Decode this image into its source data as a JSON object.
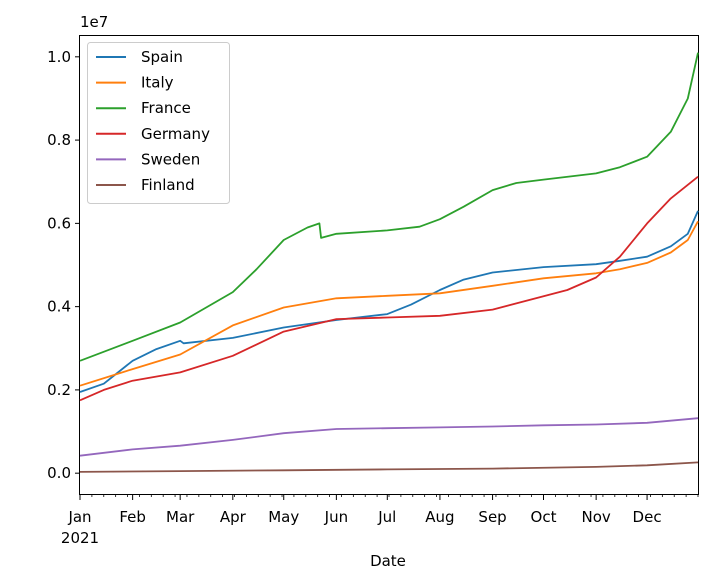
{
  "chart_data": {
    "type": "line",
    "xlabel": "Date",
    "ylabel": "",
    "offset_label": "1e7",
    "xlim": [
      "2021-01-01",
      "2021-12-31"
    ],
    "ylim": [
      -0.05,
      1.05
    ],
    "y_unit_multiplier": 10000000,
    "yticks": [
      0.0,
      0.2,
      0.4,
      0.6,
      0.8,
      1.0
    ],
    "ytick_labels": [
      "0.0",
      "0.2",
      "0.4",
      "0.6",
      "0.8",
      "1.0"
    ],
    "xticks": [
      {
        "date": "2021-01-01",
        "label": "Jan",
        "sublabel": "2021"
      },
      {
        "date": "2021-02-01",
        "label": "Feb"
      },
      {
        "date": "2021-03-01",
        "label": "Mar"
      },
      {
        "date": "2021-04-01",
        "label": "Apr"
      },
      {
        "date": "2021-05-01",
        "label": "May"
      },
      {
        "date": "2021-06-01",
        "label": "Jun"
      },
      {
        "date": "2021-07-01",
        "label": "Jul"
      },
      {
        "date": "2021-08-01",
        "label": "Aug"
      },
      {
        "date": "2021-09-01",
        "label": "Sep"
      },
      {
        "date": "2021-10-01",
        "label": "Oct"
      },
      {
        "date": "2021-11-01",
        "label": "Nov"
      },
      {
        "date": "2021-12-01",
        "label": "Dec"
      }
    ],
    "grid": false,
    "legend_position": "upper-left",
    "series": [
      {
        "name": "Spain",
        "color": "#1f77b4",
        "points": [
          [
            "2021-01-01",
            0.195
          ],
          [
            "2021-01-15",
            0.215
          ],
          [
            "2021-02-01",
            0.27
          ],
          [
            "2021-02-15",
            0.298
          ],
          [
            "2021-03-01",
            0.318
          ],
          [
            "2021-03-03",
            0.312
          ],
          [
            "2021-04-01",
            0.325
          ],
          [
            "2021-05-01",
            0.35
          ],
          [
            "2021-06-01",
            0.368
          ],
          [
            "2021-07-01",
            0.382
          ],
          [
            "2021-07-15",
            0.405
          ],
          [
            "2021-08-01",
            0.44
          ],
          [
            "2021-08-15",
            0.465
          ],
          [
            "2021-09-01",
            0.482
          ],
          [
            "2021-10-01",
            0.495
          ],
          [
            "2021-11-01",
            0.502
          ],
          [
            "2021-11-15",
            0.51
          ],
          [
            "2021-12-01",
            0.52
          ],
          [
            "2021-12-15",
            0.545
          ],
          [
            "2021-12-25",
            0.575
          ],
          [
            "2021-12-31",
            0.63
          ]
        ]
      },
      {
        "name": "Italy",
        "color": "#ff7f0e",
        "points": [
          [
            "2021-01-01",
            0.21
          ],
          [
            "2021-02-01",
            0.25
          ],
          [
            "2021-03-01",
            0.285
          ],
          [
            "2021-04-01",
            0.355
          ],
          [
            "2021-05-01",
            0.398
          ],
          [
            "2021-06-01",
            0.42
          ],
          [
            "2021-07-01",
            0.426
          ],
          [
            "2021-08-01",
            0.432
          ],
          [
            "2021-09-01",
            0.45
          ],
          [
            "2021-10-01",
            0.468
          ],
          [
            "2021-11-01",
            0.48
          ],
          [
            "2021-11-15",
            0.49
          ],
          [
            "2021-12-01",
            0.505
          ],
          [
            "2021-12-15",
            0.53
          ],
          [
            "2021-12-25",
            0.56
          ],
          [
            "2021-12-31",
            0.605
          ]
        ]
      },
      {
        "name": "France",
        "color": "#2ca02c",
        "points": [
          [
            "2021-01-01",
            0.27
          ],
          [
            "2021-02-01",
            0.318
          ],
          [
            "2021-03-01",
            0.362
          ],
          [
            "2021-04-01",
            0.435
          ],
          [
            "2021-04-15",
            0.49
          ],
          [
            "2021-05-01",
            0.56
          ],
          [
            "2021-05-15",
            0.59
          ],
          [
            "2021-05-22",
            0.6
          ],
          [
            "2021-05-23",
            0.565
          ],
          [
            "2021-06-01",
            0.575
          ],
          [
            "2021-07-01",
            0.583
          ],
          [
            "2021-07-20",
            0.592
          ],
          [
            "2021-08-01",
            0.61
          ],
          [
            "2021-08-15",
            0.64
          ],
          [
            "2021-09-01",
            0.68
          ],
          [
            "2021-09-15",
            0.697
          ],
          [
            "2021-10-01",
            0.705
          ],
          [
            "2021-11-01",
            0.72
          ],
          [
            "2021-11-15",
            0.735
          ],
          [
            "2021-12-01",
            0.76
          ],
          [
            "2021-12-15",
            0.82
          ],
          [
            "2021-12-25",
            0.9
          ],
          [
            "2021-12-31",
            1.01
          ]
        ]
      },
      {
        "name": "Germany",
        "color": "#d62728",
        "points": [
          [
            "2021-01-01",
            0.175
          ],
          [
            "2021-01-15",
            0.2
          ],
          [
            "2021-02-01",
            0.222
          ],
          [
            "2021-03-01",
            0.242
          ],
          [
            "2021-04-01",
            0.282
          ],
          [
            "2021-05-01",
            0.34
          ],
          [
            "2021-06-01",
            0.37
          ],
          [
            "2021-07-01",
            0.374
          ],
          [
            "2021-08-01",
            0.378
          ],
          [
            "2021-09-01",
            0.393
          ],
          [
            "2021-10-01",
            0.425
          ],
          [
            "2021-10-15",
            0.44
          ],
          [
            "2021-11-01",
            0.47
          ],
          [
            "2021-11-15",
            0.52
          ],
          [
            "2021-12-01",
            0.6
          ],
          [
            "2021-12-15",
            0.66
          ],
          [
            "2021-12-31",
            0.712
          ]
        ]
      },
      {
        "name": "Sweden",
        "color": "#9467bd",
        "points": [
          [
            "2021-01-01",
            0.042
          ],
          [
            "2021-02-01",
            0.057
          ],
          [
            "2021-03-01",
            0.066
          ],
          [
            "2021-04-01",
            0.08
          ],
          [
            "2021-05-01",
            0.096
          ],
          [
            "2021-06-01",
            0.106
          ],
          [
            "2021-07-01",
            0.108
          ],
          [
            "2021-08-01",
            0.11
          ],
          [
            "2021-09-01",
            0.112
          ],
          [
            "2021-10-01",
            0.115
          ],
          [
            "2021-11-01",
            0.117
          ],
          [
            "2021-12-01",
            0.121
          ],
          [
            "2021-12-31",
            0.132
          ]
        ]
      },
      {
        "name": "Finland",
        "color": "#8c564b",
        "points": [
          [
            "2021-01-01",
            0.003
          ],
          [
            "2021-03-01",
            0.005
          ],
          [
            "2021-05-01",
            0.007
          ],
          [
            "2021-07-01",
            0.009
          ],
          [
            "2021-09-01",
            0.011
          ],
          [
            "2021-11-01",
            0.015
          ],
          [
            "2021-12-01",
            0.019
          ],
          [
            "2021-12-31",
            0.026
          ]
        ]
      }
    ]
  }
}
